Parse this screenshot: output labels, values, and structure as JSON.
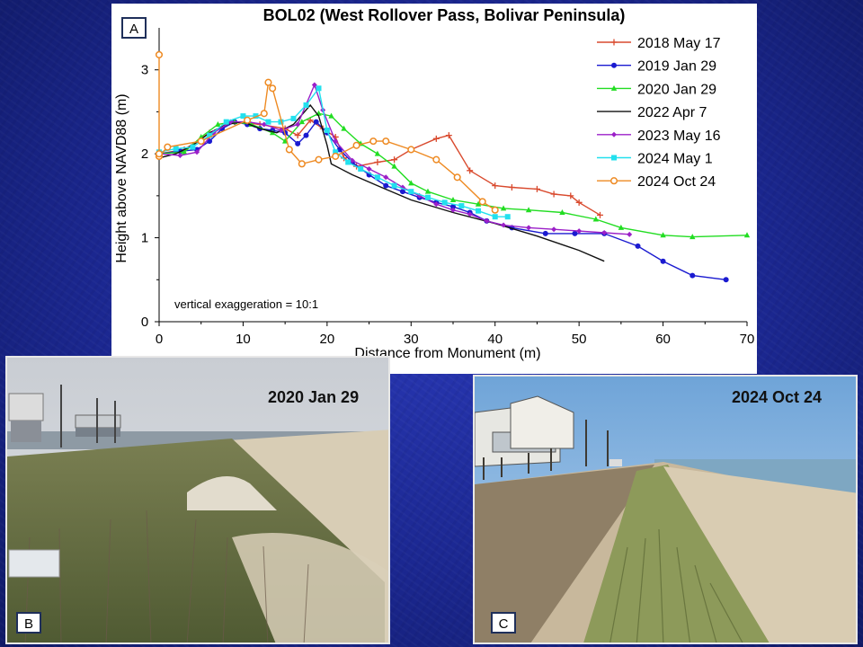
{
  "chart_data": {
    "type": "line",
    "title": "BOL02 (West Rollover Pass, Bolivar Peninsula)",
    "xlabel": "Distance from Monument (m)",
    "ylabel": "Height above NAVD88 (m)",
    "xlim": [
      0,
      70
    ],
    "ylim": [
      0,
      3.5
    ],
    "xticks": [
      0,
      10,
      20,
      30,
      40,
      50,
      60,
      70
    ],
    "yticks": [
      0,
      1,
      2,
      3
    ],
    "legend_position": "top-right",
    "grid": false,
    "annotation": "vertical exaggeration = 10:1",
    "series": [
      {
        "name": "2018 May 17",
        "color": "#d94a2e",
        "marker": "plus",
        "x": [
          0,
          3,
          6,
          9,
          12,
          15,
          16.5,
          18,
          19.5,
          21,
          22,
          23.5,
          26,
          28,
          30,
          33,
          34.5,
          37,
          40,
          42,
          45,
          47,
          49,
          50,
          52.5
        ],
        "y": [
          2.0,
          2.05,
          2.25,
          2.38,
          2.35,
          2.3,
          2.22,
          2.4,
          2.3,
          2.2,
          1.95,
          1.85,
          1.9,
          1.93,
          2.05,
          2.18,
          2.22,
          1.8,
          1.62,
          1.6,
          1.58,
          1.52,
          1.5,
          1.42,
          1.27
        ]
      },
      {
        "name": "2019 Jan 29",
        "color": "#1a1ad0",
        "marker": "circle",
        "x": [
          0,
          2.5,
          4.5,
          6,
          7.5,
          9,
          10.5,
          12,
          13.5,
          15,
          16.5,
          17.5,
          18.7,
          20,
          21.5,
          23,
          25,
          27,
          29,
          31,
          33,
          35,
          37,
          39,
          42,
          46,
          49.5,
          53,
          57,
          60,
          63.5,
          67.5
        ],
        "y": [
          2.0,
          2.03,
          2.05,
          2.15,
          2.3,
          2.38,
          2.35,
          2.3,
          2.28,
          2.25,
          2.12,
          2.22,
          2.38,
          2.25,
          2.05,
          1.9,
          1.75,
          1.62,
          1.55,
          1.48,
          1.42,
          1.37,
          1.3,
          1.2,
          1.12,
          1.05,
          1.05,
          1.05,
          0.9,
          0.72,
          0.55,
          0.5
        ]
      },
      {
        "name": "2020 Jan 29",
        "color": "#22dd22",
        "marker": "triangle",
        "x": [
          0,
          3,
          5,
          7,
          9,
          11,
          13.5,
          15,
          17,
          19,
          20.5,
          22,
          24,
          26,
          28,
          30,
          32,
          35,
          38,
          41,
          44,
          48,
          52,
          55,
          60,
          63.5,
          70
        ],
        "y": [
          2.0,
          2.02,
          2.2,
          2.35,
          2.38,
          2.35,
          2.25,
          2.15,
          2.38,
          2.48,
          2.45,
          2.3,
          2.12,
          2.0,
          1.85,
          1.65,
          1.55,
          1.45,
          1.4,
          1.35,
          1.33,
          1.3,
          1.22,
          1.12,
          1.03,
          1.01,
          1.03
        ]
      },
      {
        "name": "2022 Apr 7",
        "color": "#111111",
        "marker": "none",
        "x": [
          0,
          2,
          4,
          6,
          8,
          10,
          12,
          14,
          16,
          18,
          19,
          20,
          20.5,
          23,
          26,
          30,
          35,
          40,
          45,
          50,
          53
        ],
        "y": [
          1.95,
          2.0,
          2.1,
          2.25,
          2.35,
          2.38,
          2.3,
          2.25,
          2.35,
          2.58,
          2.45,
          2.1,
          1.88,
          1.75,
          1.62,
          1.45,
          1.3,
          1.17,
          1.02,
          0.85,
          0.72
        ]
      },
      {
        "name": "2023 May 16",
        "color": "#9b1fc8",
        "marker": "diamond",
        "x": [
          0,
          2.5,
          4.5,
          6.5,
          8.5,
          10.5,
          12.5,
          14.5,
          16.5,
          18.5,
          19.5,
          21,
          23,
          25,
          27,
          29,
          31,
          33,
          35,
          37,
          39,
          41,
          44,
          47,
          50,
          53,
          56
        ],
        "y": [
          2.0,
          1.98,
          2.02,
          2.25,
          2.38,
          2.38,
          2.35,
          2.28,
          2.35,
          2.82,
          2.52,
          2.15,
          1.92,
          1.82,
          1.72,
          1.6,
          1.5,
          1.4,
          1.33,
          1.28,
          1.2,
          1.15,
          1.12,
          1.1,
          1.08,
          1.06,
          1.04
        ]
      },
      {
        "name": "2024 May 1",
        "color": "#22e0ee",
        "marker": "square",
        "x": [
          0,
          2,
          4,
          6,
          8,
          10,
          11.5,
          13,
          14.5,
          16,
          17.5,
          19,
          20,
          21,
          22.5,
          24,
          26,
          28,
          30,
          32,
          34,
          36,
          38,
          40,
          41.5
        ],
        "y": [
          2.02,
          2.06,
          2.08,
          2.22,
          2.38,
          2.45,
          2.45,
          2.38,
          2.38,
          2.42,
          2.58,
          2.78,
          2.28,
          2.02,
          1.9,
          1.82,
          1.72,
          1.62,
          1.55,
          1.48,
          1.42,
          1.38,
          1.32,
          1.25,
          1.25
        ]
      },
      {
        "name": "2024 Oct 24",
        "color": "#ee8a22",
        "marker": "open-circle",
        "x": [
          0,
          1,
          5,
          10.5,
          12.5,
          13,
          13.5,
          15.5,
          17,
          19,
          21,
          23.5,
          25.5,
          27,
          30,
          33,
          35.5,
          38.5,
          40
        ],
        "y": [
          1.97,
          2.08,
          2.15,
          2.4,
          2.48,
          2.85,
          2.78,
          2.05,
          1.88,
          1.93,
          1.97,
          2.1,
          2.15,
          2.15,
          2.05,
          1.93,
          1.72,
          1.43,
          1.33
        ]
      },
      {
        "name": "",
        "color": "#ee8a22",
        "marker": "open-circle",
        "spike": true,
        "x": [
          0,
          0,
          0
        ],
        "y": [
          1.97,
          3.18,
          2.0
        ]
      }
    ]
  },
  "panels": {
    "chart_badge": "A",
    "photo_b_badge": "B",
    "photo_c_badge": "C",
    "photo_b_date": "2020 Jan 29",
    "photo_c_date": "2024 Oct 24"
  }
}
